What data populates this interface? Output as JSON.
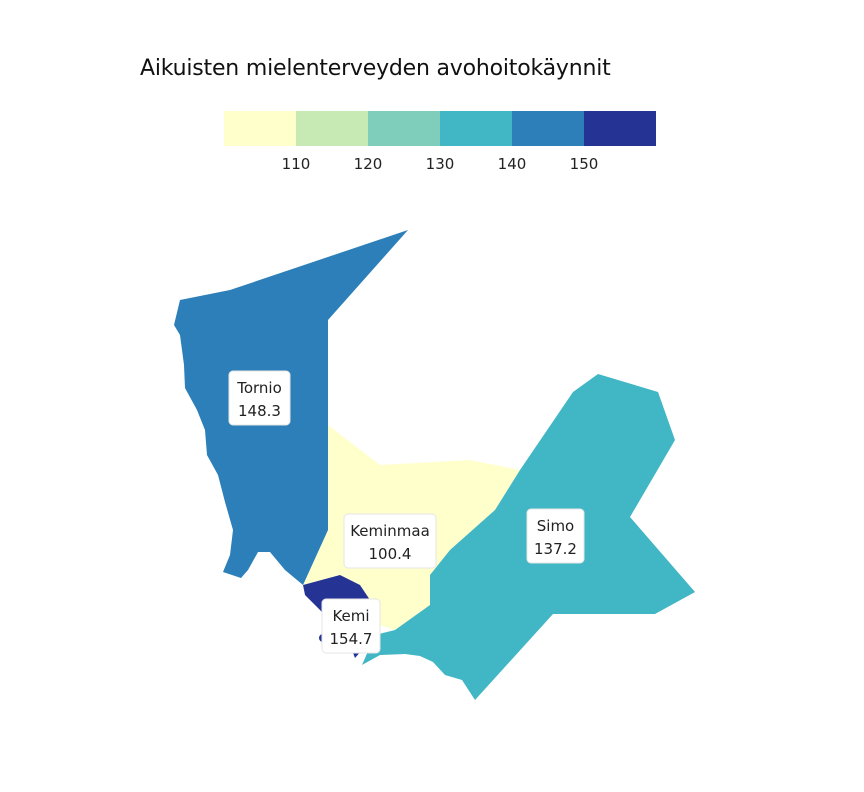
{
  "title": "Aikuisten mielenterveyden avohoitokäynnit",
  "legend": {
    "colors": [
      "#ffffcc",
      "#c7e9b4",
      "#7fcdbb",
      "#41b6c4",
      "#2c7fb8",
      "#253494"
    ],
    "ticks": [
      "110",
      "120",
      "130",
      "140",
      "150"
    ],
    "breaks": [
      110,
      120,
      130,
      140,
      150
    ]
  },
  "regions": [
    {
      "name": "Tornio",
      "value": "148.3",
      "color": "#2c7fb8"
    },
    {
      "name": "Keminmaa",
      "value": "100.4",
      "color": "#ffffcc"
    },
    {
      "name": "Simo",
      "value": "137.2",
      "color": "#41b6c4"
    },
    {
      "name": "Kemi",
      "value": "154.7",
      "color": "#253494"
    }
  ]
}
